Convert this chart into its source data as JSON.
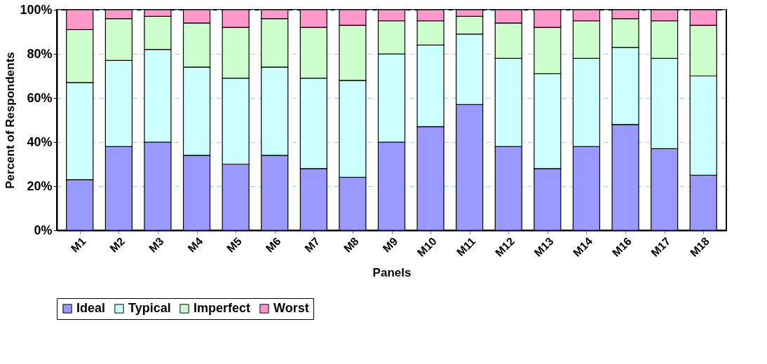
{
  "chart_data": {
    "type": "bar",
    "stacked": true,
    "xlabel": "Panels",
    "ylabel": "Percent of Respondents",
    "categories": [
      "M1",
      "M2",
      "M3",
      "M4",
      "M5",
      "M6",
      "M7",
      "M8",
      "M9",
      "M10",
      "M11",
      "M12",
      "M13",
      "M14",
      "M16",
      "M17",
      "M18"
    ],
    "series": [
      {
        "name": "Ideal",
        "color": "#9999ff",
        "values": [
          23,
          38,
          40,
          34,
          30,
          34,
          28,
          24,
          40,
          47,
          57,
          38,
          28,
          38,
          48,
          37,
          25
        ]
      },
      {
        "name": "Typical",
        "color": "#ccffff",
        "values": [
          44,
          39,
          42,
          40,
          39,
          40,
          41,
          44,
          40,
          37,
          32,
          40,
          43,
          40,
          35,
          41,
          45
        ]
      },
      {
        "name": "Imperfect",
        "color": "#ccffcc",
        "values": [
          24,
          19,
          15,
          20,
          23,
          22,
          23,
          25,
          15,
          11,
          8,
          16,
          21,
          17,
          13,
          17,
          23
        ]
      },
      {
        "name": "Worst",
        "color": "#ff99cc",
        "values": [
          9,
          4,
          3,
          6,
          8,
          4,
          8,
          7,
          5,
          5,
          3,
          6,
          8,
          5,
          4,
          5,
          7
        ]
      }
    ],
    "ylim": [
      0,
      100
    ],
    "yticks": [
      {
        "value": 0,
        "label": "0%"
      },
      {
        "value": 20,
        "label": "20%"
      },
      {
        "value": 40,
        "label": "40%"
      },
      {
        "value": 60,
        "label": "60%"
      },
      {
        "value": 80,
        "label": "80%"
      },
      {
        "value": 100,
        "label": "100%"
      }
    ],
    "grid": "y",
    "legend": "bottom"
  }
}
